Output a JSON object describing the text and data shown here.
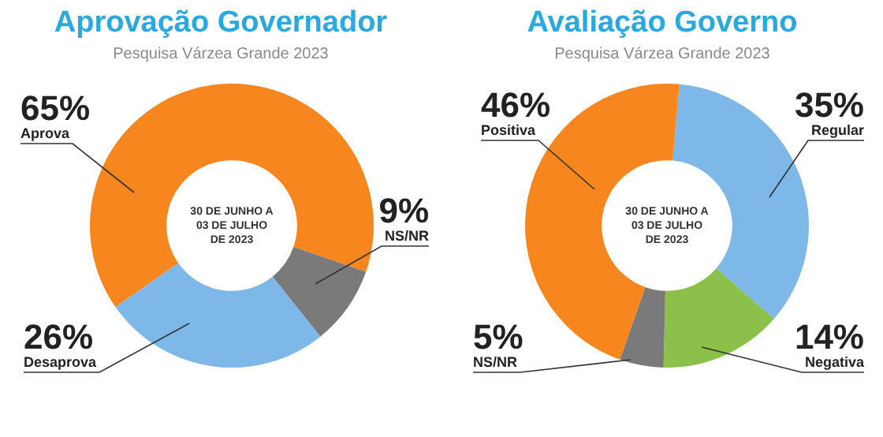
{
  "chart_data": [
    {
      "type": "donut",
      "title": "Aprovação Governador",
      "subtitle": "Pesquisa Várzea Grande 2023",
      "categories": [
        "Aprova",
        "NS/NR",
        "Desaprova"
      ],
      "values": [
        65,
        9,
        26
      ],
      "colors": [
        "#f7861f",
        "#7a7a7a",
        "#7db8e8"
      ],
      "value_labels": [
        "65%",
        "9%",
        "26%"
      ],
      "annotations": [
        "30 DE JUNHO A 03 DE JULHO DE 2023"
      ]
    },
    {
      "type": "donut",
      "title": "Avaliação Governo",
      "subtitle": "Pesquisa Várzea Grande 2023",
      "categories": [
        "Regular",
        "Negativa",
        "NS/NR",
        "Positiva"
      ],
      "values": [
        35,
        14,
        5,
        46
      ],
      "colors": [
        "#7db8e8",
        "#8dc04a",
        "#7a7a7a",
        "#f7861f"
      ],
      "value_labels": [
        "35%",
        "14%",
        "5%",
        "46%"
      ],
      "annotations": [
        "30 DE JUNHO A 03 DE JULHO DE 2023"
      ]
    }
  ]
}
